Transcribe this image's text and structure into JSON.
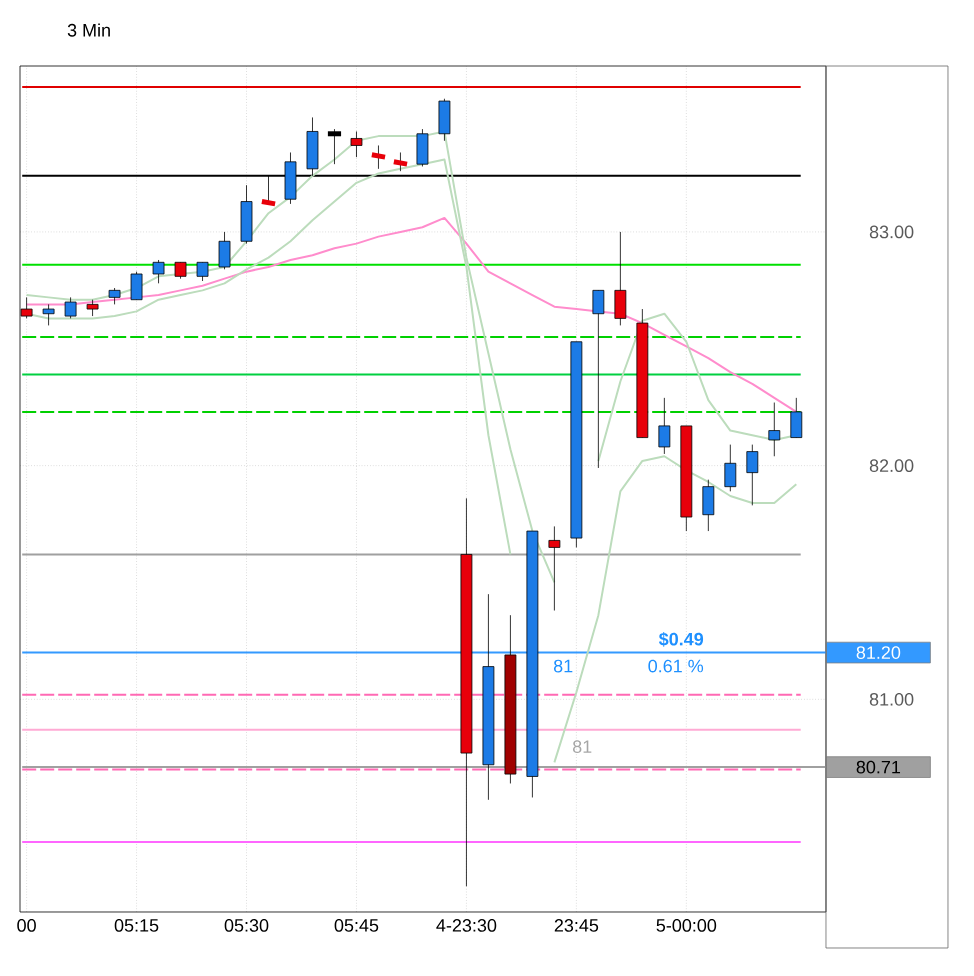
{
  "chart_data": {
    "type": "candlestick",
    "title": "3 Min",
    "categories": [
      "00",
      null,
      null,
      null,
      null,
      "05:15",
      null,
      null,
      null,
      null,
      "05:30",
      null,
      null,
      null,
      null,
      "05:45",
      null,
      null,
      null,
      null,
      "4-23:30",
      null,
      null,
      null,
      null,
      "23:45",
      null,
      null,
      null,
      null,
      "5-00:00",
      null,
      null,
      null,
      null,
      null
    ],
    "ohlc": [
      [
        82.67,
        82.72,
        82.63,
        82.64
      ],
      [
        82.65,
        82.69,
        82.6,
        82.67
      ],
      [
        82.64,
        82.72,
        82.63,
        82.7
      ],
      [
        82.69,
        82.71,
        82.64,
        82.67
      ],
      [
        82.72,
        82.76,
        82.69,
        82.75
      ],
      [
        82.71,
        82.83,
        82.71,
        82.82
      ],
      [
        82.82,
        82.88,
        82.78,
        82.87
      ],
      [
        82.87,
        82.87,
        82.8,
        82.81
      ],
      [
        82.81,
        82.87,
        82.79,
        82.87
      ],
      [
        82.85,
        83.0,
        82.84,
        82.96
      ],
      [
        82.96,
        83.2,
        82.95,
        83.13
      ],
      [
        83.13,
        83.24,
        83.12,
        83.12
      ],
      [
        83.14,
        83.34,
        83.12,
        83.3
      ],
      [
        83.27,
        83.49,
        83.24,
        83.43
      ],
      [
        83.42,
        83.44,
        83.29,
        83.42
      ],
      [
        83.4,
        83.43,
        83.32,
        83.37
      ],
      [
        83.33,
        83.37,
        83.27,
        83.32
      ],
      [
        83.3,
        83.34,
        83.26,
        83.29
      ],
      [
        83.29,
        83.44,
        83.28,
        83.42
      ],
      [
        83.42,
        83.57,
        83.39,
        83.56
      ],
      [
        81.62,
        81.86,
        80.2,
        80.77
      ],
      [
        80.72,
        81.45,
        80.57,
        81.14
      ],
      [
        81.19,
        81.36,
        80.64,
        80.68
      ],
      [
        80.67,
        81.72,
        80.58,
        81.72
      ],
      [
        81.68,
        81.74,
        81.38,
        81.65
      ],
      [
        81.69,
        82.53,
        81.65,
        82.53
      ],
      [
        82.65,
        82.75,
        81.99,
        82.75
      ],
      [
        82.75,
        83.0,
        82.6,
        82.63
      ],
      [
        82.61,
        82.67,
        82.12,
        82.12
      ],
      [
        82.08,
        82.29,
        82.05,
        82.17
      ],
      [
        82.17,
        82.17,
        81.72,
        81.78
      ],
      [
        81.79,
        81.94,
        81.72,
        81.91
      ],
      [
        81.91,
        82.09,
        81.89,
        82.01
      ],
      [
        81.97,
        82.09,
        81.83,
        82.06
      ],
      [
        82.11,
        82.27,
        82.04,
        82.15
      ],
      [
        82.12,
        82.29,
        82.12,
        82.23
      ]
    ],
    "colors": [
      "#e8000a",
      "#1c7be6",
      "#1c7be6",
      "#e8000a",
      "#1c7be6",
      "#1c7be6",
      "#1c7be6",
      "#e8000a",
      "#1c7be6",
      "#1c7be6",
      "#1c7be6",
      "#e8000a",
      "#1c7be6",
      "#1c7be6",
      "#000000",
      "#e8000a",
      "#e8000a",
      "#e8000a",
      "#1c7be6",
      "#1c7be6",
      "#e8000a",
      "#1c7be6",
      "#a00000",
      "#1c7be6",
      "#e8000a",
      "#1c7be6",
      "#1c7be6",
      "#e8000a",
      "#e8000a",
      "#1c7be6",
      "#e8000a",
      "#1c7be6",
      "#1c7be6",
      "#1c7be6",
      "#1c7be6",
      "#1c7be6"
    ],
    "series": [
      {
        "type": "line",
        "color": "#ff8ccc",
        "values": [
          82.69,
          82.69,
          82.69,
          82.7,
          82.71,
          82.72,
          82.73,
          82.75,
          82.77,
          82.8,
          82.83,
          82.85,
          82.88,
          82.9,
          82.93,
          82.95,
          82.98,
          83.0,
          83.02,
          83.06,
          82.95,
          82.83,
          82.78,
          82.73,
          82.68,
          82.67,
          82.66,
          82.65,
          82.61,
          82.56,
          82.51,
          82.46,
          82.4,
          82.35,
          82.29,
          82.23
        ]
      },
      {
        "type": "line",
        "color": "#bcdcbc",
        "values": [
          82.73,
          82.72,
          82.71,
          82.71,
          82.73,
          82.76,
          82.81,
          82.82,
          82.83,
          82.85,
          82.96,
          83.08,
          83.15,
          83.24,
          83.31,
          83.39,
          83.41,
          83.41,
          83.41,
          83.43,
          82.89,
          82.48,
          82.07,
          81.72,
          81.5,
          null,
          82.02,
          82.36,
          82.62,
          82.65,
          82.53,
          82.28,
          82.15,
          82.13,
          82.11,
          82.13
        ]
      },
      {
        "type": "line",
        "color": "#bcdcbc",
        "values": [
          82.65,
          82.63,
          82.63,
          82.63,
          82.64,
          82.66,
          82.71,
          82.73,
          82.75,
          82.78,
          82.84,
          82.89,
          82.96,
          83.05,
          83.13,
          83.21,
          83.25,
          83.27,
          83.29,
          83.31,
          82.85,
          82.13,
          81.62,
          null,
          80.73,
          81.03,
          81.36,
          81.89,
          82.02,
          82.04,
          81.98,
          81.93,
          81.87,
          81.84,
          81.84,
          81.92
        ]
      }
    ],
    "ylim": [
      80.09,
      83.71
    ],
    "yticks": [
      {
        "value": 81,
        "label": "81.00"
      },
      {
        "value": 82,
        "label": "82.00"
      },
      {
        "value": 83,
        "label": "83.00"
      }
    ],
    "grid": true,
    "ref_lines": [
      {
        "axis": "y",
        "value": 83.62,
        "color": "#e00000"
      },
      {
        "axis": "y",
        "value": 83.24,
        "color": "#000000"
      },
      {
        "axis": "y",
        "value": 82.86,
        "color": "#00e000"
      },
      {
        "axis": "y",
        "value": 82.55,
        "color": "#00d000",
        "line_style": "dashed"
      },
      {
        "axis": "y",
        "value": 82.39,
        "color": "#00d040"
      },
      {
        "axis": "y",
        "value": 82.23,
        "color": "#00d000",
        "line_style": "dashed"
      },
      {
        "axis": "y",
        "value": 81.62,
        "color": "#a0a0a0"
      },
      {
        "axis": "y",
        "value": 81.2,
        "label": "81.20",
        "color": "#3399ff"
      },
      {
        "axis": "y",
        "value": 81.02,
        "color": "#ff69b4",
        "line_style": "dashed"
      },
      {
        "axis": "y",
        "value": 80.87,
        "color": "#ffaad4"
      },
      {
        "axis": "y",
        "value": 80.71,
        "label": "80.71",
        "color": "#a0a0a0"
      },
      {
        "axis": "y",
        "value": 80.7,
        "color": "#ff69b4",
        "line_style": "dashed"
      },
      {
        "axis": "y",
        "value": 80.39,
        "color": "#ff66ff"
      }
    ],
    "annotations": [
      "$0.49",
      "81",
      "0.61 %",
      "81"
    ]
  }
}
